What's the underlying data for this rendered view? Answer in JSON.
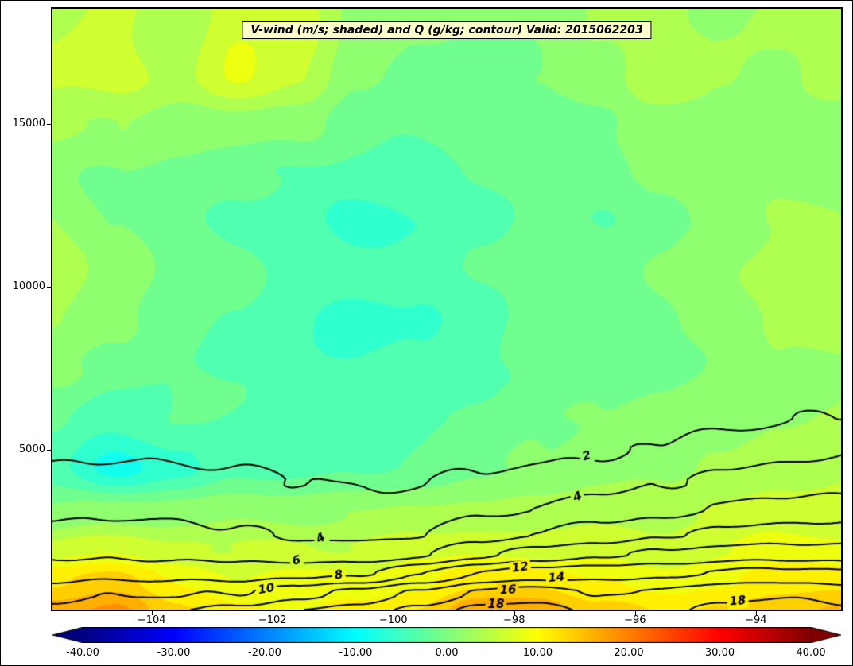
{
  "chart_data": {
    "type": "heatmap",
    "title": "V-wind (m/s; shaded) and Q (g/kg; contour) Valid: 2015062203",
    "xlabel": "",
    "ylabel": "",
    "style": {
      "title_background": "#FFFFCC",
      "contour_color": "#000000",
      "figure_background": "#FFFFFF",
      "colormap": "jet"
    },
    "x_axis": {
      "range": [
        -105.64,
        -92.59
      ],
      "tick_values": [
        -104,
        -102,
        -100,
        -98,
        -96,
        -94
      ],
      "tick_labels": [
        "−104",
        "−102",
        "−100",
        "−98",
        "−96",
        "−94"
      ]
    },
    "y_axis": {
      "range": [
        100,
        18550
      ],
      "tick_values": [
        5000,
        10000,
        15000
      ],
      "tick_labels": [
        "5000",
        "10000",
        "15000"
      ]
    },
    "shaded_field": {
      "name": "V-wind",
      "units": "m/s",
      "band_step": 2.5,
      "grid_x": [
        -105.64,
        -104.6,
        -103.6,
        -102.6,
        -101.6,
        -100.6,
        -99.6,
        -98.6,
        -97.6,
        -96.6,
        -95.6,
        -94.6,
        -93.6,
        -92.59
      ],
      "grid_z": [
        0,
        1000,
        2000,
        3000,
        4500,
        6000,
        7500,
        9000,
        10500,
        12000,
        13500,
        15000,
        16500,
        18600
      ],
      "values": [
        [
          17,
          18,
          13,
          11,
          10,
          11,
          13,
          17,
          17,
          13,
          12,
          13,
          15,
          15
        ],
        [
          12,
          13,
          10,
          8,
          8,
          8,
          9,
          11,
          12,
          10,
          9,
          10,
          11,
          11
        ],
        [
          6,
          7,
          6,
          5,
          5,
          5,
          6,
          7,
          7,
          7,
          6,
          7,
          8,
          8
        ],
        [
          1,
          2,
          2,
          2,
          2,
          2,
          3,
          3,
          4,
          4,
          4,
          5,
          6,
          6
        ],
        [
          -4,
          -9,
          -6,
          -3,
          -3,
          -3,
          -2,
          -1,
          0,
          1,
          2,
          3,
          4,
          4
        ],
        [
          -2,
          -4,
          -3,
          -3,
          -3,
          -3,
          -2,
          -2,
          -1,
          0,
          1,
          2,
          3,
          3
        ],
        [
          1,
          -1,
          -2,
          -3,
          -4,
          -5,
          -4,
          -3,
          -2,
          -2,
          -1,
          0,
          2,
          2
        ],
        [
          3,
          1,
          -2,
          -3,
          -4,
          -6,
          -5,
          -3,
          -2,
          -2,
          -1,
          1,
          3,
          4
        ],
        [
          4,
          2,
          -1,
          -2,
          -3,
          -4,
          -3,
          -2,
          -2,
          -1,
          0,
          2,
          4,
          5
        ],
        [
          2,
          0,
          -2,
          -3,
          -4,
          -6,
          -5,
          -3,
          -2,
          -2,
          -1,
          1,
          3,
          3
        ],
        [
          1,
          0,
          -1,
          -2,
          -2,
          -3,
          -3,
          -2,
          -2,
          -1,
          0,
          1,
          2,
          2
        ],
        [
          3,
          2,
          1,
          2,
          1,
          -1,
          -2,
          -2,
          -1,
          0,
          1,
          2,
          1,
          1
        ],
        [
          5,
          6,
          4,
          8,
          5,
          1,
          -1,
          -1,
          0,
          2,
          5,
          3,
          2,
          4
        ],
        [
          4,
          5,
          3,
          7,
          6,
          2,
          0,
          0,
          1,
          3,
          4,
          2,
          3,
          3
        ]
      ]
    },
    "contour_field": {
      "name": "Q",
      "units": "g/kg",
      "levels": [
        2,
        4,
        6,
        8,
        10,
        12,
        14,
        16,
        18
      ],
      "grid_x": [
        -105.64,
        -104.6,
        -103.6,
        -102.6,
        -101.6,
        -100.6,
        -99.6,
        -98.6,
        -97.6,
        -96.6,
        -95.6,
        -94.6,
        -93.6,
        -92.59
      ],
      "grid_z": [
        0,
        600,
        1200,
        1800,
        2400,
        3200,
        4000,
        5000,
        6000,
        7200
      ],
      "values": [
        [
          11.0,
          11.5,
          12.0,
          13.0,
          14.0,
          15.0,
          16.5,
          19.0,
          19.0,
          17.5,
          17.5,
          18.5,
          19.0,
          18.5
        ],
        [
          9.2,
          9.9,
          9.8,
          10.0,
          11.3,
          12.6,
          14.3,
          16.3,
          17.1,
          15.7,
          16.4,
          17.5,
          17.8,
          17.3
        ],
        [
          7.1,
          7.4,
          7.3,
          7.1,
          7.7,
          7.6,
          10.0,
          12.0,
          13.2,
          13.3,
          13.7,
          14.3,
          14.6,
          14.5
        ],
        [
          5.6,
          5.8,
          5.6,
          5.4,
          5.1,
          4.9,
          5.7,
          7.5,
          9.0,
          9.7,
          10.2,
          11.0,
          11.3,
          11.2
        ],
        [
          4.5,
          4.8,
          4.6,
          4.2,
          3.8,
          3.7,
          4.0,
          5.3,
          6.0,
          7.1,
          7.7,
          8.4,
          9.0,
          8.9
        ],
        [
          3.4,
          3.7,
          3.4,
          3.3,
          3.0,
          2.7,
          2.9,
          3.5,
          4.2,
          4.9,
          5.4,
          6.0,
          6.7,
          6.9
        ],
        [
          2.6,
          2.8,
          2.6,
          2.4,
          2.1,
          1.9,
          1.9,
          2.2,
          2.7,
          3.3,
          3.8,
          4.5,
          5.2,
          5.4
        ],
        [
          1.6,
          1.8,
          1.6,
          1.5,
          1.3,
          1.1,
          1.1,
          1.3,
          1.5,
          1.8,
          2.2,
          2.9,
          3.5,
          3.8
        ],
        [
          1.0,
          1.1,
          1.0,
          0.9,
          0.8,
          0.7,
          0.7,
          0.8,
          0.9,
          1.0,
          1.2,
          1.5,
          1.8,
          2.1
        ],
        [
          0.6,
          0.6,
          0.5,
          0.5,
          0.4,
          0.4,
          0.3,
          0.4,
          0.4,
          0.5,
          0.6,
          0.7,
          0.9,
          1.0
        ]
      ],
      "labels": [
        {
          "text": "2",
          "x": -96.8,
          "z": 4800,
          "rot": -15
        },
        {
          "text": "4",
          "x": -96.95,
          "z": 3550,
          "rot": -20
        },
        {
          "text": "4",
          "x": -101.2,
          "z": 2280,
          "rot": -30
        },
        {
          "text": "6",
          "x": -101.6,
          "z": 1590,
          "rot": -12
        },
        {
          "text": "8",
          "x": -100.9,
          "z": 1150,
          "rot": -10
        },
        {
          "text": "10",
          "x": -102.1,
          "z": 720,
          "rot": -10
        },
        {
          "text": "12",
          "x": -97.9,
          "z": 1380,
          "rot": -8
        },
        {
          "text": "14",
          "x": -97.3,
          "z": 1070,
          "rot": -5
        },
        {
          "text": "16",
          "x": -98.1,
          "z": 690,
          "rot": -3
        },
        {
          "text": "18",
          "x": -98.3,
          "z": 250,
          "rot": 0
        },
        {
          "text": "18",
          "x": -94.3,
          "z": 350,
          "rot": -5
        }
      ]
    },
    "colorbar": {
      "vmin": -40,
      "vmax": 40,
      "extend": "both",
      "tick_values": [
        -40,
        -30,
        -20,
        -10,
        0,
        10,
        20,
        30,
        40
      ],
      "tick_labels": [
        "-40.00",
        "-30.00",
        "-20.00",
        "-10.00",
        "0.00",
        "10.00",
        "20.00",
        "30.00",
        "40.00"
      ]
    }
  }
}
